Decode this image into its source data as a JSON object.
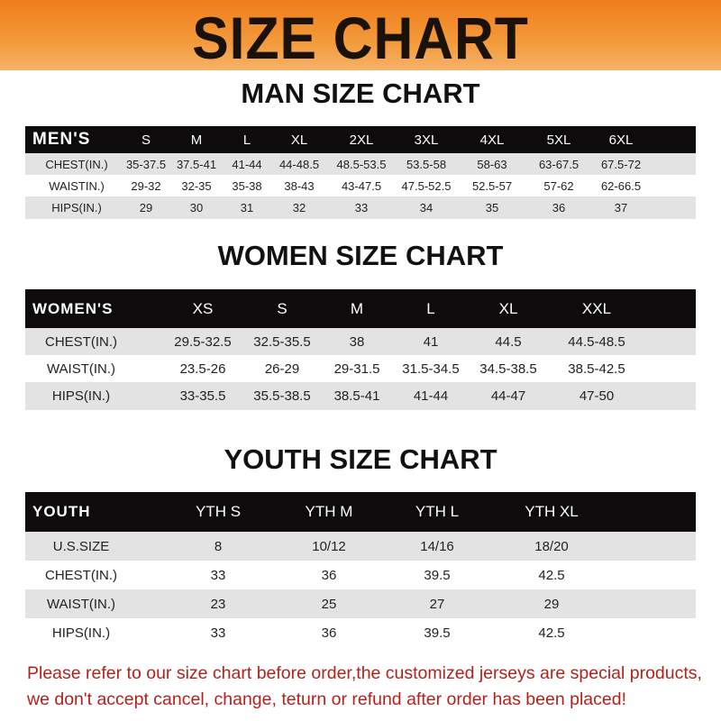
{
  "banner": {
    "title": "SIZE CHART",
    "color": "#f07d1c"
  },
  "men": {
    "title": "MAN SIZE CHART",
    "header": [
      "MEN'S",
      "S",
      "M",
      "L",
      "XL",
      "2XL",
      "3XL",
      "4XL",
      "5XL",
      "6XL"
    ],
    "rows": [
      [
        "CHEST(IN.)",
        "35-37.5",
        "37.5-41",
        "41-44",
        "44-48.5",
        "48.5-53.5",
        "53.5-58",
        "58-63",
        "63-67.5",
        "67.5-72"
      ],
      [
        "WAISTIN.)",
        "29-32",
        "32-35",
        "35-38",
        "38-43",
        "43-47.5",
        "47.5-52.5",
        "52.5-57",
        "57-62",
        "62-66.5"
      ],
      [
        "HIPS(IN.)",
        "29",
        "30",
        "31",
        "32",
        "33",
        "34",
        "35",
        "36",
        "37"
      ]
    ]
  },
  "women": {
    "title": "WOMEN SIZE CHART",
    "header": [
      "WOMEN'S",
      "XS",
      "S",
      "M",
      "L",
      "XL",
      "XXL"
    ],
    "rows": [
      [
        "CHEST(IN.)",
        "29.5-32.5",
        "32.5-35.5",
        "38",
        "41",
        "44.5",
        "44.5-48.5"
      ],
      [
        "WAIST(IN.)",
        "23.5-26",
        "26-29",
        "29-31.5",
        "31.5-34.5",
        "34.5-38.5",
        "38.5-42.5"
      ],
      [
        "HIPS(IN.)",
        "33-35.5",
        "35.5-38.5",
        "38.5-41",
        "41-44",
        "44-47",
        "47-50"
      ]
    ]
  },
  "youth": {
    "title": "YOUTH SIZE CHART",
    "header": [
      "YOUTH",
      "YTH S",
      "YTH M",
      "YTH L",
      "YTH XL"
    ],
    "rows": [
      [
        "U.S.SIZE",
        "8",
        "10/12",
        "14/16",
        "18/20"
      ],
      [
        "CHEST(IN.)",
        "33",
        "36",
        "39.5",
        "42.5"
      ],
      [
        "WAIST(IN.)",
        "23",
        "25",
        "27",
        "29"
      ],
      [
        "HIPS(IN.)",
        "33",
        "36",
        "39.5",
        "42.5"
      ]
    ]
  },
  "note": "Please refer to our size chart before order,the customized jerseys are special products, we don't accept cancel, change, teturn or refund after order has been placed!",
  "note_color": "#b0231c"
}
